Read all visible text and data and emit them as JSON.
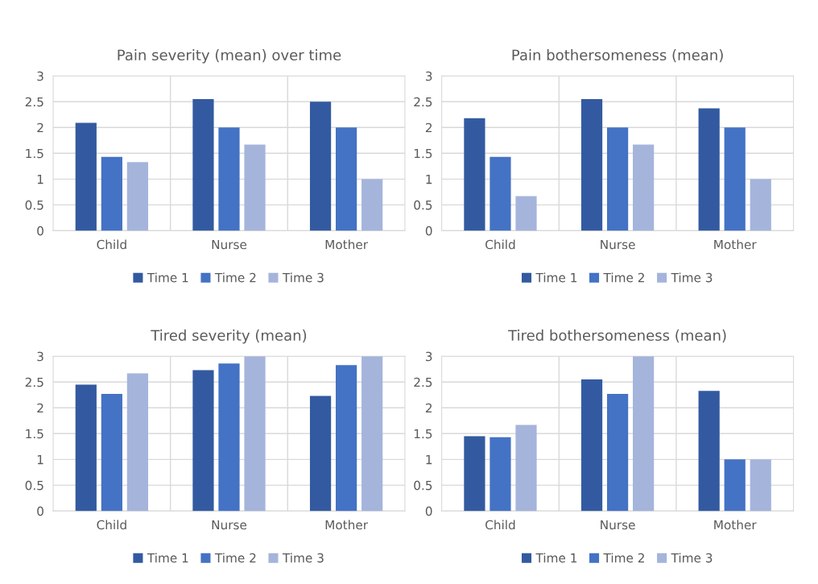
{
  "chart_data": [
    {
      "type": "bar",
      "title": "Pain severity (mean) over time",
      "categories": [
        "Child",
        "Nurse",
        "Mother"
      ],
      "series": [
        {
          "name": "Time 1",
          "color": "#335aa0",
          "values": [
            2.09,
            2.55,
            2.5
          ]
        },
        {
          "name": "Time 2",
          "color": "#4472c4",
          "values": [
            1.43,
            2.0,
            2.0
          ]
        },
        {
          "name": "Time 3",
          "color": "#a5b4db",
          "values": [
            1.33,
            1.67,
            1.0
          ]
        }
      ],
      "ylim": [
        0,
        3
      ],
      "yticks": [
        0,
        {
          "value": 0.5,
          "label": "0.5"
        },
        1,
        {
          "value": 1.5,
          "label": "1.5"
        },
        2,
        {
          "value": 2.5,
          "label": "2.5"
        },
        3
      ],
      "grid": true,
      "legend": "bottom"
    },
    {
      "type": "bar",
      "title": "Pain bothersomeness (mean)",
      "categories": [
        "Child",
        "Nurse",
        "Mother"
      ],
      "series": [
        {
          "name": "Time 1",
          "color": "#335aa0",
          "values": [
            2.18,
            2.55,
            2.37
          ]
        },
        {
          "name": "Time 2",
          "color": "#4472c4",
          "values": [
            1.43,
            2.0,
            2.0
          ]
        },
        {
          "name": "Time 3",
          "color": "#a5b4db",
          "values": [
            0.67,
            1.67,
            1.0
          ]
        }
      ],
      "ylim": [
        0,
        3
      ],
      "yticks": [
        0,
        {
          "value": 0.5,
          "label": "0.5"
        },
        1,
        {
          "value": 1.5,
          "label": "1.5"
        },
        2,
        {
          "value": 2.5,
          "label": "2.5"
        },
        3
      ],
      "grid": true,
      "legend": "bottom"
    },
    {
      "type": "bar",
      "title": "Tired severity (mean)",
      "categories": [
        "Child",
        "Nurse",
        "Mother"
      ],
      "series": [
        {
          "name": "Time 1",
          "color": "#335aa0",
          "values": [
            2.45,
            2.73,
            2.23
          ]
        },
        {
          "name": "Time 2",
          "color": "#4472c4",
          "values": [
            2.27,
            2.86,
            2.83
          ]
        },
        {
          "name": "Time 3",
          "color": "#a5b4db",
          "values": [
            2.67,
            3,
            3
          ]
        }
      ],
      "ylim": [
        0,
        3
      ],
      "yticks": [
        0,
        {
          "value": 0.5,
          "label": "0.5"
        },
        1,
        {
          "value": 1.5,
          "label": "1.5"
        },
        2,
        {
          "value": 2.5,
          "label": "2.5"
        },
        3
      ],
      "grid": true,
      "legend": "bottom"
    },
    {
      "type": "bar",
      "title": "Tired bothersomeness (mean)",
      "categories": [
        "Child",
        "Nurse",
        "Mother"
      ],
      "series": [
        {
          "name": "Time 1",
          "color": "#335aa0",
          "values": [
            1.45,
            2.55,
            2.33
          ]
        },
        {
          "name": "Time 2",
          "color": "#4472c4",
          "values": [
            1.43,
            2.27,
            1.0
          ]
        },
        {
          "name": "Time 3",
          "color": "#a5b4db",
          "values": [
            1.67,
            3,
            1.0
          ]
        }
      ],
      "ylim": [
        0,
        3
      ],
      "yticks": [
        0,
        {
          "value": 0.5,
          "label": "0.5"
        },
        1,
        {
          "value": 1.5,
          "label": "1.5"
        },
        2,
        {
          "value": 2.5,
          "label": "2.5"
        },
        3
      ],
      "grid": true,
      "legend": "bottom"
    }
  ]
}
